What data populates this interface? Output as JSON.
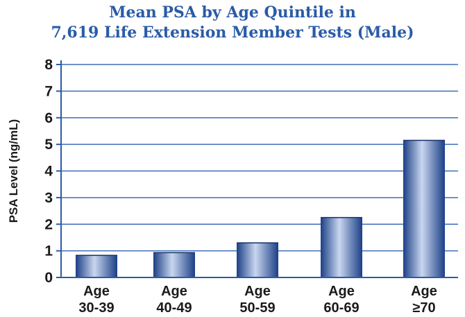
{
  "title_line1": "Mean PSA by Age Quintile in",
  "title_line2": "7,619 Life Extension Member Tests (Male)",
  "chart_data": {
    "type": "bar",
    "title": "Mean PSA by Age Quintile in 7,619 Life Extension Member Tests (Male)",
    "ylabel": "PSA Level (ng/mL)",
    "xlabel": "",
    "ylim": [
      0,
      8
    ],
    "yticks": [
      "0",
      "1",
      "2",
      "3",
      "4",
      "5",
      "6",
      "7",
      "8"
    ],
    "grid": true,
    "categories": [
      {
        "line1": "Age",
        "line2": "30-39"
      },
      {
        "line1": "Age",
        "line2": "40-49"
      },
      {
        "line1": "Age",
        "line2": "50-59"
      },
      {
        "line1": "Age",
        "line2": "60-69"
      },
      {
        "line1": "Age",
        "line2": "≥70"
      }
    ],
    "values": [
      0.83,
      0.93,
      1.3,
      2.25,
      5.15
    ],
    "colors": {
      "bar_dark": "#1b3f86",
      "bar_light": "#c9d6ef",
      "grid": "#3b6fb8",
      "axis": "#2a5ba6",
      "text": "#1a1a1a",
      "title": "#2a5ba6"
    }
  }
}
